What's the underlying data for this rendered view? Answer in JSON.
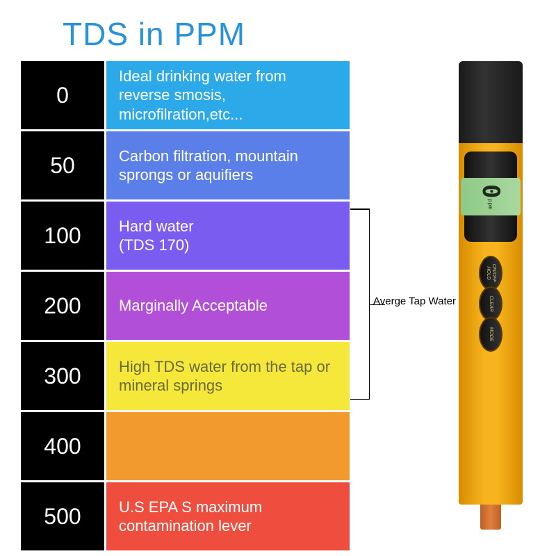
{
  "title": {
    "text": "TDS in PPM",
    "color": "#2893d9"
  },
  "bracket_label": "Averge Tap Water",
  "rows": [
    {
      "value": "0",
      "desc": "Ideal drinking water from reverse smosis, microfilration,etc...",
      "bg": "#2ca9e8",
      "fg": "#ffffff"
    },
    {
      "value": "50",
      "desc": "Carbon filtration, mountain sprongs or aquifiers",
      "bg": "#5a7fe8",
      "fg": "#ffffff"
    },
    {
      "value": "100",
      "desc": "Hard water\n(TDS 170)",
      "bg": "#7a5df0",
      "fg": "#ffffff"
    },
    {
      "value": "200",
      "desc": "Marginally Acceptable",
      "bg": "#b24fd9",
      "fg": "#ffffff"
    },
    {
      "value": "300",
      "desc": "High TDS water from the tap or mineral springs",
      "bg": "#f5e83a",
      "fg": "#6a6a40"
    },
    {
      "value": "400",
      "desc": "",
      "bg": "#f29a2e",
      "fg": "#ffffff"
    },
    {
      "value": "500",
      "desc": "U.S EPA S maximum contamination lever",
      "bg": "#ef4e3f",
      "fg": "#ffffff"
    }
  ],
  "device": {
    "reading": "0",
    "unit": "ppm",
    "buttons": [
      "ON/OFF\nHOLD",
      "CLEAR",
      "MODE"
    ],
    "body_color": "#f7b41e",
    "cap_color": "#222222"
  }
}
